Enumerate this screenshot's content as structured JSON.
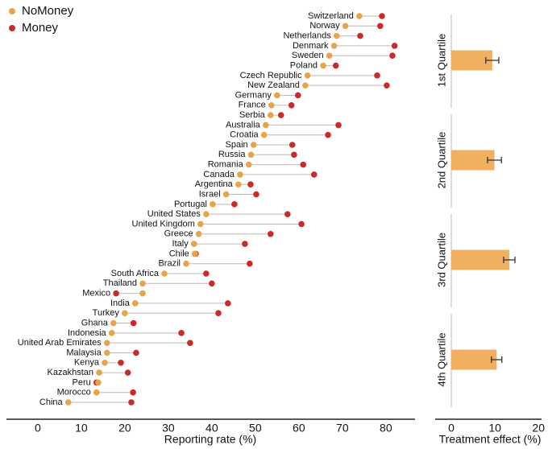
{
  "chart_data": [
    {
      "type": "dumbbell",
      "xlabel": "Reporting rate (%)",
      "legend": "top-left",
      "categories": [
        "Switzerland",
        "Norway",
        "Netherlands",
        "Denmark",
        "Sweden",
        "Poland",
        "Czech Republic",
        "New Zealand",
        "Germany",
        "France",
        "Serbia",
        "Australia",
        "Croatia",
        "Spain",
        "Russia",
        "Romania",
        "Canada",
        "Argentina",
        "Israel",
        "Portugal",
        "United States",
        "United Kingdom",
        "Greece",
        "Italy",
        "Chile",
        "Brazil",
        "South Africa",
        "Thailand",
        "Mexico",
        "India",
        "Turkey",
        "Ghana",
        "Indonesia",
        "United Arab Emirates",
        "Malaysia",
        "Kenya",
        "Kazakhstan",
        "Peru",
        "Morocco",
        "China"
      ],
      "series": [
        {
          "name": "NoMoney",
          "color": "#e8a44a",
          "values": [
            73.9,
            70.7,
            68.7,
            68.1,
            67.0,
            65.6,
            62.0,
            61.5,
            55.0,
            53.7,
            53.5,
            52.4,
            52.0,
            49.6,
            49.0,
            48.5,
            46.5,
            46.1,
            43.3,
            40.2,
            38.7,
            37.4,
            37.0,
            35.9,
            36.1,
            34.1,
            29.1,
            24.1,
            24.1,
            22.4,
            20.0,
            17.4,
            17.0,
            15.9,
            15.9,
            15.4,
            14.1,
            13.9,
            13.5,
            7.0
          ]
        },
        {
          "name": "Money",
          "color": "#cc2a2a",
          "values": [
            79.1,
            78.7,
            74.1,
            82.0,
            81.5,
            68.5,
            78.0,
            80.2,
            59.8,
            58.3,
            55.9,
            69.1,
            66.7,
            58.5,
            58.9,
            61.0,
            63.5,
            48.9,
            50.2,
            45.2,
            57.4,
            60.6,
            53.5,
            47.6,
            36.3,
            48.7,
            38.7,
            40.0,
            18.0,
            43.7,
            41.5,
            22.0,
            33.0,
            35.0,
            22.6,
            19.1,
            20.7,
            13.5,
            21.9,
            21.5
          ]
        }
      ],
      "xlim": [
        -7.2,
        86.7
      ],
      "xticks": [
        0,
        10,
        20,
        30,
        40,
        50,
        60,
        70,
        80
      ]
    },
    {
      "type": "bar",
      "orientation": "horizontal",
      "xlabel": "Treatment effect (%)",
      "categories": [
        "1st Quartile",
        "2nd Quartile",
        "3rd Quartile",
        "4th Quartile"
      ],
      "values": [
        9.4,
        9.9,
        13.3,
        10.4
      ],
      "errors": [
        1.5,
        1.6,
        1.3,
        1.2
      ],
      "color": "#f0b060",
      "xlim": [
        -3.7,
        20.7
      ],
      "xticks": [
        0,
        10,
        20
      ]
    }
  ]
}
